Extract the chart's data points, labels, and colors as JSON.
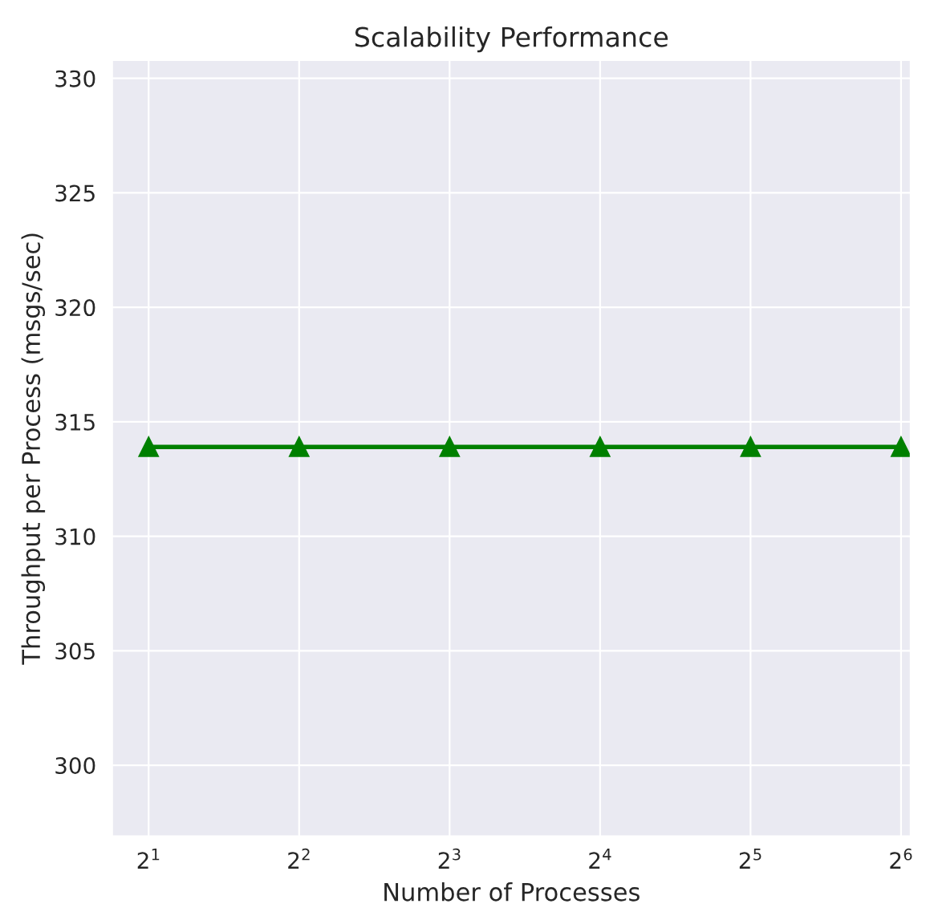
{
  "chart_data": {
    "type": "line",
    "title": "Scalability Performance",
    "xlabel": "Number of Processes",
    "ylabel": "Throughput per Process (msgs/sec)",
    "x": [
      2,
      4,
      8,
      16,
      32,
      64
    ],
    "series": [
      {
        "color": "#008000",
        "values": [
          313.9,
          313.9,
          313.9,
          313.9,
          313.9,
          313.9
        ]
      }
    ],
    "log": "x",
    "marker": "triangle",
    "line_style": "solid",
    "grid": true,
    "xlim": [
      1.69,
      66.9
    ],
    "xticks": [
      {
        "value": 2,
        "label": "2$^{1}$"
      },
      {
        "value": 4,
        "label": "2$^{2}$"
      },
      {
        "value": 8,
        "label": "2$^{3}$"
      },
      {
        "value": 16,
        "label": "2$^{4}$"
      },
      {
        "value": 32,
        "label": "2$^{5}$"
      },
      {
        "value": 64,
        "label": "2$^{6}$"
      }
    ],
    "ylim": [
      296.9,
      330.8
    ],
    "yticks": [
      300,
      305,
      310,
      315,
      320,
      325,
      330
    ]
  }
}
